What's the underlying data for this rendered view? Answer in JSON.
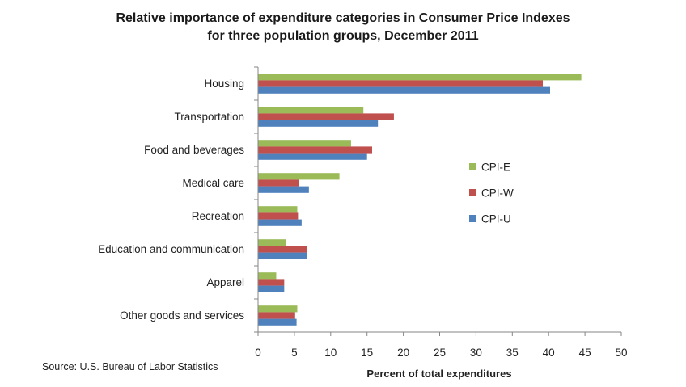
{
  "chart_data": {
    "type": "bar",
    "orientation": "horizontal",
    "title_lines": [
      "Relative importance of expenditure categories in Consumer Price Indexes",
      "for three population groups, December 2011"
    ],
    "categories": [
      "Housing",
      "Transportation",
      "Food and beverages",
      "Medical care",
      "Recreation",
      "Education and communication",
      "Apparel",
      "Other goods and services"
    ],
    "series": [
      {
        "name": "CPI-E",
        "color": "#9bbb59",
        "values": [
          44.5,
          14.5,
          12.8,
          11.2,
          5.4,
          3.9,
          2.5,
          5.4
        ]
      },
      {
        "name": "CPI-W",
        "color": "#c0504d",
        "values": [
          39.2,
          18.7,
          15.7,
          5.6,
          5.5,
          6.7,
          3.6,
          5.1
        ]
      },
      {
        "name": "CPI-U",
        "color": "#4f81bd",
        "values": [
          40.2,
          16.5,
          15.0,
          7.0,
          6.0,
          6.7,
          3.6,
          5.3
        ]
      }
    ],
    "xlabel": "Percent of total expenditures",
    "xlim": [
      0,
      50
    ],
    "xticks": [
      "0",
      "5",
      "10",
      "15",
      "20",
      "25",
      "30",
      "35",
      "40",
      "45",
      "50"
    ],
    "legend_position": "right",
    "grid": false
  },
  "source_note": "Source: U.S. Bureau of Labor Statistics"
}
